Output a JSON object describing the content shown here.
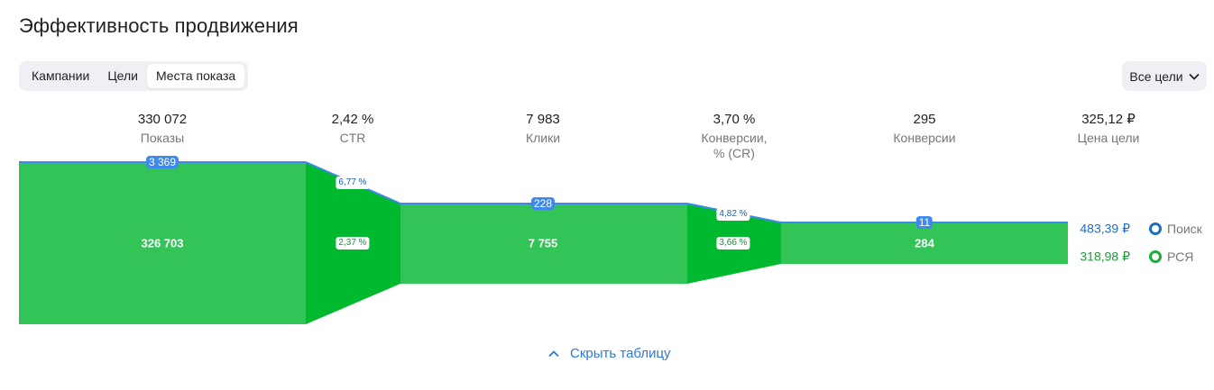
{
  "title": "Эффективность продвижения",
  "tabs": [
    {
      "label": "Кампании",
      "active": false
    },
    {
      "label": "Цели",
      "active": false
    },
    {
      "label": "Места показа",
      "active": true
    }
  ],
  "goal_select": {
    "label": "Все цели",
    "icon": "chevron-down-icon"
  },
  "metrics": [
    {
      "value": "330 072",
      "label": "Показы"
    },
    {
      "value": "2,42 %",
      "label": "CTR"
    },
    {
      "value": "7 983",
      "label": "Клики"
    },
    {
      "value": "3,70 %",
      "label": "Конверсии,\n% (CR)"
    },
    {
      "value": "295",
      "label": "Конверсии"
    },
    {
      "value": "325,12 ₽",
      "label": "Цена цели"
    }
  ],
  "funnel": {
    "stages": [
      {
        "search": "3 369",
        "rsya": "326 703"
      },
      {
        "search": "228",
        "rsya": "7 755"
      },
      {
        "search": "11",
        "rsya": "284"
      }
    ],
    "transitions": [
      {
        "search_pct": "6,77 %",
        "rsya_pct": "2,37 %"
      },
      {
        "search_pct": "4,82 %",
        "rsya_pct": "3,66 %"
      }
    ],
    "goal_price": {
      "search": "483,39 ₽",
      "rsya": "318,98 ₽"
    }
  },
  "legend": [
    {
      "label": "Поиск",
      "color": "#1f6ec5"
    },
    {
      "label": "РСЯ",
      "color": "#1cae3a"
    }
  ],
  "colors": {
    "stage_green": "#33c457",
    "transition_green": "#00b92f",
    "search_blue": "#3d89ec"
  },
  "hide_table_label": "Скрыть таблицу"
}
